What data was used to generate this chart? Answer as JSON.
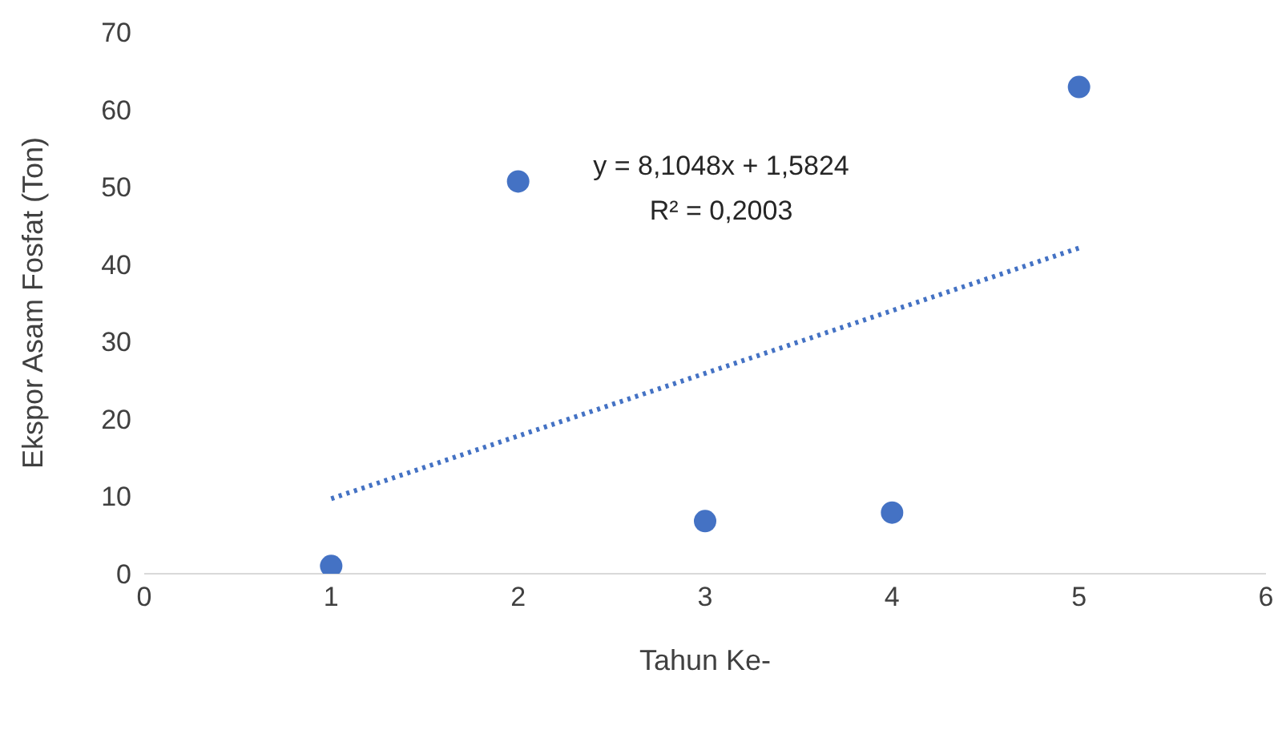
{
  "chart_data": {
    "type": "scatter",
    "xlabel": "Tahun Ke-",
    "ylabel": "Ekspor Asam Fosfat (Ton)",
    "x": [
      1,
      2,
      3,
      4,
      5
    ],
    "series": [
      {
        "type": "scatter",
        "color": "#4472c4",
        "values": [
          1,
          50.7,
          6.8,
          7.9,
          62.9
        ],
        "marker": "circle"
      },
      {
        "type": "line",
        "color": "#4472c4",
        "x": [
          1,
          5
        ],
        "values": [
          9.7,
          42.1
        ],
        "marker": "none",
        "line_style": "dotted"
      }
    ],
    "xlim": [
      0,
      6
    ],
    "xticks": [
      0,
      1,
      2,
      3,
      4,
      5,
      6
    ],
    "ylim": [
      0,
      70
    ],
    "yticks": [
      0,
      10,
      20,
      30,
      40,
      50,
      60,
      70
    ],
    "grid": false,
    "legend": false,
    "annotations": [
      "y = 8,1048x + 1,5824",
      "R² = 0,2003"
    ]
  }
}
